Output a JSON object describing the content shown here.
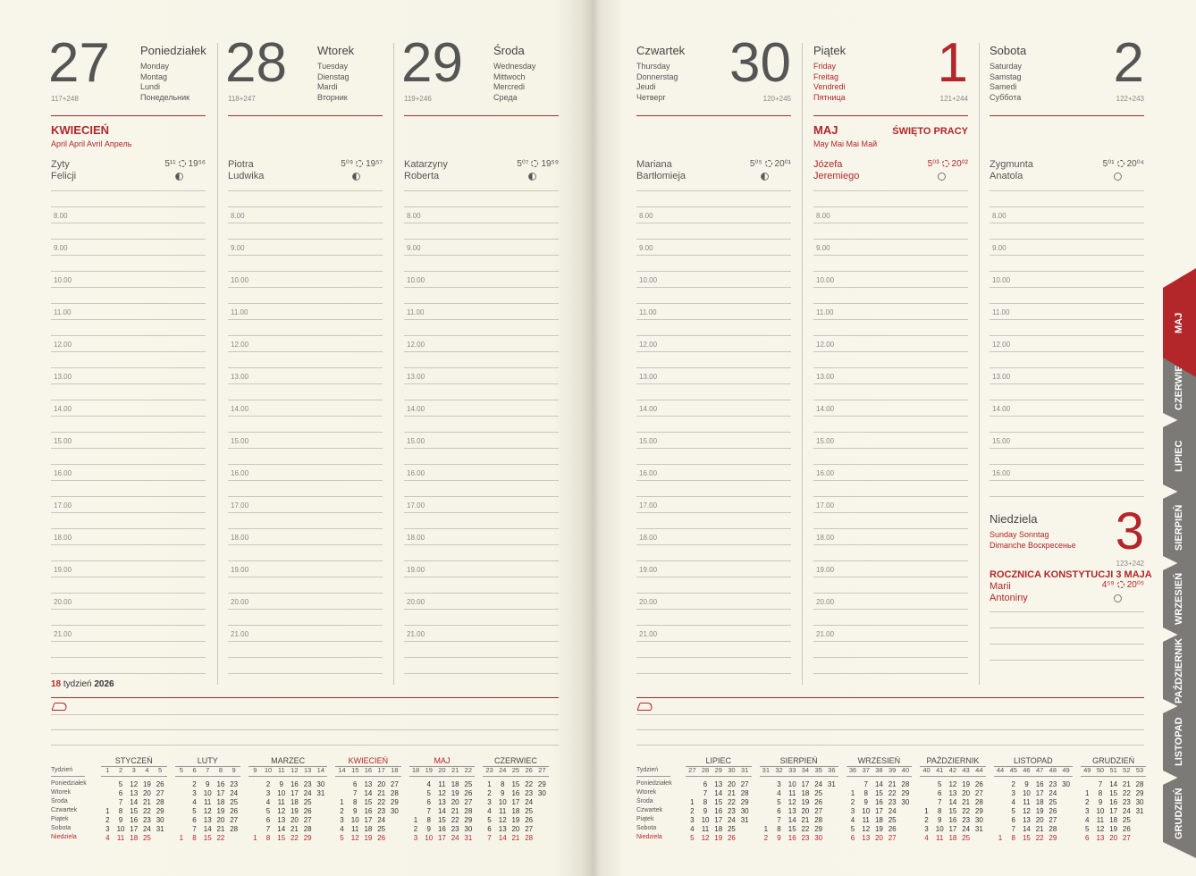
{
  "accent_color": "#b3262a",
  "text_color": "#555555",
  "hours": [
    "8.00",
    "9.00",
    "10.00",
    "11.00",
    "12.00",
    "13.00",
    "14.00",
    "15.00",
    "16.00",
    "17.00",
    "18.00",
    "19.00",
    "20.00",
    "21.00"
  ],
  "days": [
    {
      "number": 27,
      "name": "Poniedziałek",
      "translations": [
        "Monday",
        "Montag",
        "Lundi",
        "Понедельник"
      ],
      "day_count": "117+248",
      "month": "KWIECIEŃ",
      "month_translations": "April  April  Avril  Апрель",
      "name_days": [
        "Zyty",
        "Felicji"
      ],
      "sunrise": "5¹¹",
      "sunset": "19⁵⁶",
      "color": "#555555"
    },
    {
      "number": 28,
      "name": "Wtorek",
      "translations": [
        "Tuesday",
        "Dienstag",
        "Mardi",
        "Вторник"
      ],
      "day_count": "118+247",
      "name_days": [
        "Piotra",
        "Ludwika"
      ],
      "sunrise": "5⁰⁹",
      "sunset": "19⁵⁷",
      "color": "#555555"
    },
    {
      "number": 29,
      "name": "Środa",
      "translations": [
        "Wednesday",
        "Mittwoch",
        "Mercredi",
        "Среда"
      ],
      "day_count": "119+246",
      "name_days": [
        "Katarzyny",
        "Roberta"
      ],
      "sunrise": "5⁰⁷",
      "sunset": "19⁵⁹",
      "color": "#555555"
    },
    {
      "number": 30,
      "name": "Czwartek",
      "translations": [
        "Thursday",
        "Donnerstag",
        "Jeudi",
        "Четверг"
      ],
      "day_count": "120+245",
      "name_days": [
        "Mariana",
        "Bartłomieja"
      ],
      "sunrise": "5⁰⁵",
      "sunset": "20⁰¹",
      "color": "#555555"
    },
    {
      "number": 1,
      "name": "Piątek",
      "translations": [
        "Friday",
        "Freitag",
        "Vendredi",
        "Пятница"
      ],
      "day_count": "121+244",
      "month": "MAJ",
      "month_translations": "May  Mai  Mai  Май",
      "holiday": "ŚWIĘTO PRACY",
      "name_days": [
        "Józefa",
        "Jeremiego"
      ],
      "sunrise": "5⁰³",
      "sunset": "20⁰²",
      "color": "#b3262a"
    },
    {
      "number": 2,
      "name": "Sobota",
      "translations": [
        "Saturday",
        "Samstag",
        "Samedi",
        "Суббота"
      ],
      "day_count": "122+243",
      "name_days": [
        "Zygmunta",
        "Anatola"
      ],
      "sunrise": "5⁰¹",
      "sunset": "20⁰⁴",
      "color": "#555555"
    },
    {
      "number": 3,
      "name": "Niedziela",
      "translations": [
        "Sunday  Sonntag",
        "Dimanche  Воскресенье"
      ],
      "day_count": "123+242",
      "holiday": "ROCZNICA KONSTYTUCJI 3 MAJA",
      "name_days": [
        "Marii",
        "Antoniny"
      ],
      "sunrise": "4⁵⁹",
      "sunset": "20⁰⁵",
      "color": "#b3262a"
    }
  ],
  "week": {
    "number": 18,
    "label": "tydzień",
    "year": 2026
  },
  "calendar": {
    "row_labels": [
      "Tydzień",
      "Poniedziałek",
      "Wtorek",
      "Środa",
      "Czwartek",
      "Piątek",
      "Sobota",
      "Niedziela"
    ],
    "months": [
      {
        "name": "STYCZEŃ",
        "weeks": [
          1,
          2,
          3,
          4,
          5
        ],
        "rows": [
          [
            null,
            5,
            12,
            19,
            26
          ],
          [
            null,
            6,
            13,
            20,
            27
          ],
          [
            null,
            7,
            14,
            21,
            28
          ],
          [
            1,
            8,
            15,
            22,
            29
          ],
          [
            2,
            9,
            16,
            23,
            30
          ],
          [
            3,
            10,
            17,
            24,
            31
          ],
          [
            4,
            11,
            18,
            25,
            null
          ]
        ]
      },
      {
        "name": "LUTY",
        "weeks": [
          5,
          6,
          7,
          8,
          9
        ],
        "rows": [
          [
            null,
            2,
            9,
            16,
            23
          ],
          [
            null,
            3,
            10,
            17,
            24
          ],
          [
            null,
            4,
            11,
            18,
            25
          ],
          [
            null,
            5,
            12,
            19,
            26
          ],
          [
            null,
            6,
            13,
            20,
            27
          ],
          [
            null,
            7,
            14,
            21,
            28
          ],
          [
            1,
            8,
            15,
            22,
            null
          ]
        ]
      },
      {
        "name": "MARZEC",
        "weeks": [
          9,
          10,
          11,
          12,
          13,
          14
        ],
        "rows": [
          [
            null,
            2,
            9,
            16,
            23,
            30
          ],
          [
            null,
            3,
            10,
            17,
            24,
            31
          ],
          [
            null,
            4,
            11,
            18,
            25,
            null
          ],
          [
            null,
            5,
            12,
            19,
            26,
            null
          ],
          [
            null,
            6,
            13,
            20,
            27,
            null
          ],
          [
            null,
            7,
            14,
            21,
            28,
            null
          ],
          [
            1,
            8,
            15,
            22,
            29,
            null
          ]
        ]
      },
      {
        "name": "KWIECIEŃ",
        "current": true,
        "weeks": [
          14,
          15,
          16,
          17,
          18
        ],
        "rows": [
          [
            null,
            6,
            13,
            20,
            27
          ],
          [
            null,
            7,
            14,
            21,
            28
          ],
          [
            1,
            8,
            15,
            22,
            29
          ],
          [
            2,
            9,
            16,
            23,
            30
          ],
          [
            3,
            10,
            17,
            24,
            null
          ],
          [
            4,
            11,
            18,
            25,
            null
          ],
          [
            5,
            12,
            19,
            26,
            null
          ]
        ]
      },
      {
        "name": "MAJ",
        "current": true,
        "weeks": [
          18,
          19,
          20,
          21,
          22
        ],
        "rows": [
          [
            null,
            4,
            11,
            18,
            25
          ],
          [
            null,
            5,
            12,
            19,
            26
          ],
          [
            null,
            6,
            13,
            20,
            27
          ],
          [
            null,
            7,
            14,
            21,
            28
          ],
          [
            1,
            8,
            15,
            22,
            29
          ],
          [
            2,
            9,
            16,
            23,
            30
          ],
          [
            3,
            10,
            17,
            24,
            31
          ]
        ]
      },
      {
        "name": "CZERWIEC",
        "weeks": [
          23,
          24,
          25,
          26,
          27
        ],
        "rows": [
          [
            1,
            8,
            15,
            22,
            29
          ],
          [
            2,
            9,
            16,
            23,
            30
          ],
          [
            3,
            10,
            17,
            24,
            null
          ],
          [
            4,
            11,
            18,
            25,
            null
          ],
          [
            5,
            12,
            19,
            26,
            null
          ],
          [
            6,
            13,
            20,
            27,
            null
          ],
          [
            7,
            14,
            21,
            28,
            null
          ]
        ]
      },
      {
        "name": "LIPIEC",
        "weeks": [
          27,
          28,
          29,
          30,
          31
        ],
        "rows": [
          [
            null,
            6,
            13,
            20,
            27
          ],
          [
            null,
            7,
            14,
            21,
            28
          ],
          [
            1,
            8,
            15,
            22,
            29
          ],
          [
            2,
            9,
            16,
            23,
            30
          ],
          [
            3,
            10,
            17,
            24,
            31
          ],
          [
            4,
            11,
            18,
            25,
            null
          ],
          [
            5,
            12,
            19,
            26,
            null
          ]
        ]
      },
      {
        "name": "SIERPIEŃ",
        "weeks": [
          31,
          32,
          33,
          34,
          35,
          36
        ],
        "rows": [
          [
            null,
            3,
            10,
            17,
            24,
            31
          ],
          [
            null,
            4,
            11,
            18,
            25,
            null
          ],
          [
            null,
            5,
            12,
            19,
            26,
            null
          ],
          [
            null,
            6,
            13,
            20,
            27,
            null
          ],
          [
            null,
            7,
            14,
            21,
            28,
            null
          ],
          [
            1,
            8,
            15,
            22,
            29,
            null
          ],
          [
            2,
            9,
            16,
            23,
            30,
            null
          ]
        ]
      },
      {
        "name": "WRZESIEŃ",
        "weeks": [
          36,
          37,
          38,
          39,
          40
        ],
        "rows": [
          [
            null,
            7,
            14,
            21,
            28
          ],
          [
            1,
            8,
            15,
            22,
            29
          ],
          [
            2,
            9,
            16,
            23,
            30
          ],
          [
            3,
            10,
            17,
            24,
            null
          ],
          [
            4,
            11,
            18,
            25,
            null
          ],
          [
            5,
            12,
            19,
            26,
            null
          ],
          [
            6,
            13,
            20,
            27,
            null
          ]
        ]
      },
      {
        "name": "PAŹDZIERNIK",
        "weeks": [
          40,
          41,
          42,
          43,
          44
        ],
        "rows": [
          [
            null,
            5,
            12,
            19,
            26
          ],
          [
            null,
            6,
            13,
            20,
            27
          ],
          [
            null,
            7,
            14,
            21,
            28
          ],
          [
            1,
            8,
            15,
            22,
            29
          ],
          [
            2,
            9,
            16,
            23,
            30
          ],
          [
            3,
            10,
            17,
            24,
            31
          ],
          [
            4,
            11,
            18,
            25,
            null
          ]
        ]
      },
      {
        "name": "LISTOPAD",
        "weeks": [
          44,
          45,
          46,
          47,
          48,
          49
        ],
        "rows": [
          [
            null,
            2,
            9,
            16,
            23,
            30
          ],
          [
            null,
            3,
            10,
            17,
            24,
            null
          ],
          [
            null,
            4,
            11,
            18,
            25,
            null
          ],
          [
            null,
            5,
            12,
            19,
            26,
            null
          ],
          [
            null,
            6,
            13,
            20,
            27,
            null
          ],
          [
            null,
            7,
            14,
            21,
            28,
            null
          ],
          [
            1,
            8,
            15,
            22,
            29,
            null
          ]
        ]
      },
      {
        "name": "GRUDZIEŃ",
        "weeks": [
          49,
          50,
          51,
          52,
          53
        ],
        "rows": [
          [
            null,
            7,
            14,
            21,
            28
          ],
          [
            1,
            8,
            15,
            22,
            29
          ],
          [
            2,
            9,
            16,
            23,
            30
          ],
          [
            3,
            10,
            17,
            24,
            31
          ],
          [
            4,
            11,
            18,
            25,
            null
          ],
          [
            5,
            12,
            19,
            26,
            null
          ],
          [
            6,
            13,
            20,
            27,
            null
          ]
        ]
      }
    ]
  },
  "tabs": [
    "MAJ",
    "CZERWIEC",
    "LIPIEC",
    "SIERPIEŃ",
    "WRZESIEŃ",
    "PAŹDZIERNIK",
    "LISTOPAD",
    "GRUDZIEŃ"
  ]
}
